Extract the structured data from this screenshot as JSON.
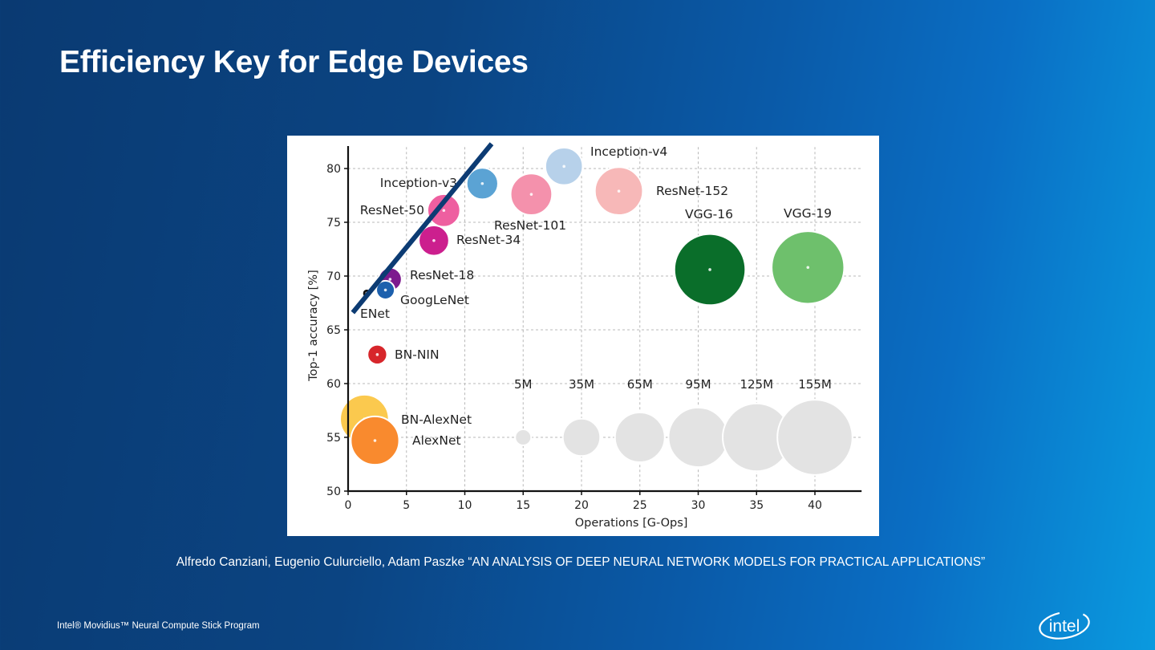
{
  "slide": {
    "title": "Efficiency Key for Edge Devices",
    "citation": "Alfredo Canziani, Eugenio Culurciello, Adam Paszke “AN ANALYSIS OF DEEP NEURAL NETWORK MODELS FOR PRACTICAL APPLICATIONS”",
    "footer": "Intel® Movidius™ Neural Compute Stick Program",
    "logo_text": "intel",
    "trend_line_color": "#0c3b73"
  },
  "chart_data": {
    "type": "scatter",
    "title": "",
    "xlabel": "Operations [G-Ops]",
    "ylabel": "Top-1 accuracy [%]",
    "xlim": [
      0,
      44
    ],
    "ylim": [
      50,
      82
    ],
    "xticks": [
      0,
      5,
      10,
      15,
      20,
      25,
      30,
      35,
      40
    ],
    "yticks": [
      50,
      55,
      60,
      65,
      70,
      75,
      80
    ],
    "grid": true,
    "points": [
      {
        "name": "Inception-v4",
        "x": 18.5,
        "y": 80.2,
        "params_m": 35,
        "color": "#b7d1ea"
      },
      {
        "name": "ResNet-152",
        "x": 23.2,
        "y": 77.9,
        "params_m": 60,
        "color": "#f7b8b8"
      },
      {
        "name": "ResNet-101",
        "x": 15.7,
        "y": 77.6,
        "params_m": 44,
        "color": "#f491ac"
      },
      {
        "name": "Inception-v3",
        "x": 11.5,
        "y": 78.6,
        "params_m": 24,
        "color": "#5ba3d4"
      },
      {
        "name": "ResNet-50",
        "x": 8.2,
        "y": 76.1,
        "params_m": 26,
        "color": "#ee5fa0"
      },
      {
        "name": "ResNet-34",
        "x": 7.35,
        "y": 73.3,
        "params_m": 22,
        "color": "#cc1f8e"
      },
      {
        "name": "ResNet-18",
        "x": 3.6,
        "y": 69.7,
        "params_m": 12,
        "color": "#7d1a8e"
      },
      {
        "name": "GoogLeNet",
        "x": 3.2,
        "y": 68.7,
        "params_m": 7,
        "color": "#1c60ad"
      },
      {
        "name": "ENet",
        "x": 1.6,
        "y": 68.4,
        "params_m": 1,
        "color": "#111111"
      },
      {
        "name": "BN-NIN",
        "x": 2.5,
        "y": 62.7,
        "params_m": 8,
        "color": "#d7262b"
      },
      {
        "name": "BN-AlexNet",
        "x": 1.4,
        "y": 56.7,
        "params_m": 62,
        "color": "#fbc94e"
      },
      {
        "name": "AlexNet",
        "x": 2.3,
        "y": 54.7,
        "params_m": 61,
        "color": "#f98a2e"
      },
      {
        "name": "VGG-16",
        "x": 31.0,
        "y": 70.6,
        "params_m": 138,
        "color": "#0a6e2a"
      },
      {
        "name": "VGG-19",
        "x": 39.4,
        "y": 70.8,
        "params_m": 144,
        "color": "#6ec06c"
      }
    ],
    "size_legend": [
      {
        "label": "5M",
        "x": 15,
        "y": 55,
        "params_m": 5
      },
      {
        "label": "35M",
        "x": 20,
        "y": 55,
        "params_m": 35
      },
      {
        "label": "65M",
        "x": 25,
        "y": 55,
        "params_m": 65
      },
      {
        "label": "95M",
        "x": 30,
        "y": 55,
        "params_m": 95
      },
      {
        "label": "125M",
        "x": 35,
        "y": 55,
        "params_m": 125
      },
      {
        "label": "155M",
        "x": 40,
        "y": 55,
        "params_m": 155
      }
    ],
    "size_legend_color": "#e3e3e3",
    "annotation_line": {
      "from": [
        0.4,
        66.6
      ],
      "to": [
        12.3,
        82.3
      ]
    }
  }
}
